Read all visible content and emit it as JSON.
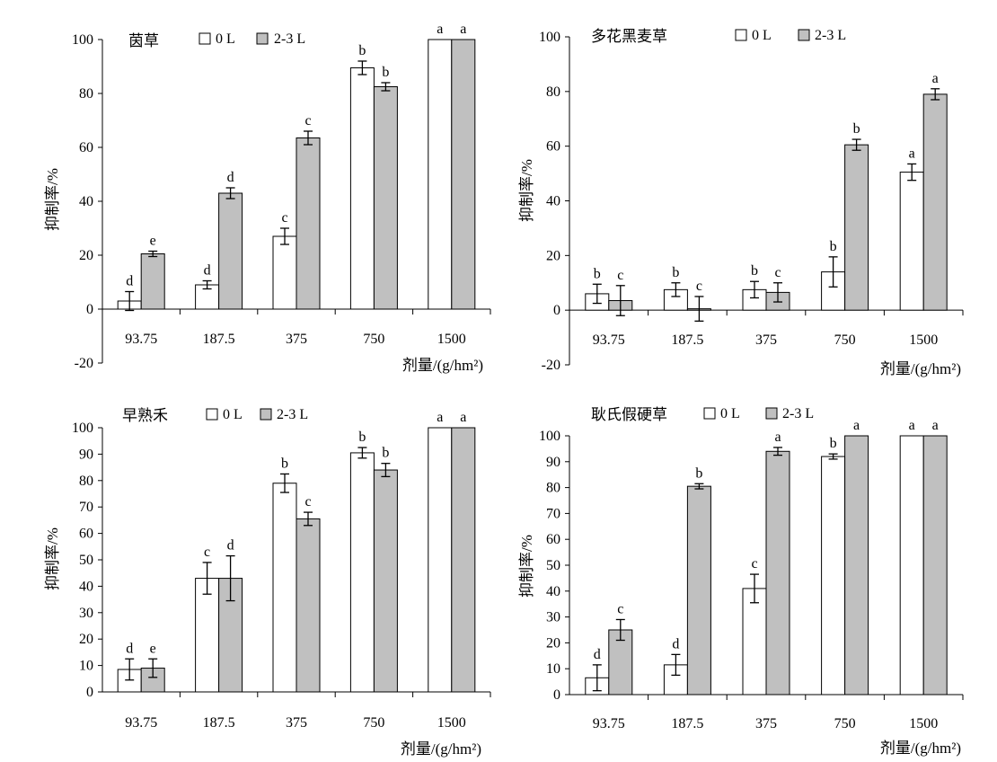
{
  "figure": {
    "colors": {
      "bar_0L": "#ffffff",
      "bar_23L": "#c0c0c0",
      "ink": "#000000"
    },
    "xlabel": "剂量/(g/hm²)",
    "ylabel": "抑制率/%",
    "legend": [
      "0 L",
      "2-3 L"
    ]
  },
  "chart_data": [
    {
      "type": "bar",
      "title": "茵草",
      "categories": [
        "93.75",
        "187.5",
        "375",
        "750",
        "1500"
      ],
      "ylim": [
        -20,
        100
      ],
      "yticks": [
        -20,
        0,
        20,
        40,
        60,
        80,
        100
      ],
      "series": [
        {
          "name": "0 L",
          "values": [
            3,
            9,
            27,
            89.5,
            100
          ],
          "errors": [
            3.5,
            1.5,
            3,
            2.5,
            0
          ],
          "letters": [
            "d",
            "d",
            "c",
            "b",
            "a"
          ]
        },
        {
          "name": "2-3 L",
          "values": [
            20.5,
            43,
            63.5,
            82.5,
            100
          ],
          "errors": [
            1,
            2,
            2.5,
            1.5,
            0
          ],
          "letters": [
            "e",
            "d",
            "c",
            "b",
            "a"
          ]
        }
      ],
      "xlabel": "剂量/(g/hm²)",
      "ylabel": "抑制率/%"
    },
    {
      "type": "bar",
      "title": "多花黑麦草",
      "categories": [
        "93.75",
        "187.5",
        "375",
        "750",
        "1500"
      ],
      "ylim": [
        -20,
        100
      ],
      "yticks": [
        -20,
        0,
        20,
        40,
        60,
        80,
        100
      ],
      "series": [
        {
          "name": "0 L",
          "values": [
            6,
            7.5,
            7.5,
            14,
            50.5
          ],
          "errors": [
            3.5,
            2.5,
            3,
            5.5,
            3
          ],
          "letters": [
            "b",
            "b",
            "b",
            "b",
            "a"
          ]
        },
        {
          "name": "2-3 L",
          "values": [
            3.5,
            0.5,
            6.5,
            60.5,
            79
          ],
          "errors": [
            5.5,
            4.5,
            3.5,
            2,
            2
          ],
          "letters": [
            "c",
            "c",
            "c",
            "b",
            "a"
          ]
        }
      ],
      "xlabel": "剂量/(g/hm²)",
      "ylabel": "抑制率/%"
    },
    {
      "type": "bar",
      "title": "早熟禾",
      "categories": [
        "93.75",
        "187.5",
        "375",
        "750",
        "1500"
      ],
      "ylim": [
        0,
        100
      ],
      "yticks": [
        0,
        10,
        20,
        30,
        40,
        50,
        60,
        70,
        80,
        90,
        100
      ],
      "series": [
        {
          "name": "0 L",
          "values": [
            8.5,
            43,
            79,
            90.5,
            100
          ],
          "errors": [
            4,
            6,
            3.5,
            2,
            0
          ],
          "letters": [
            "d",
            "c",
            "b",
            "b",
            "a"
          ]
        },
        {
          "name": "2-3 L",
          "values": [
            9,
            43,
            65.5,
            84,
            100
          ],
          "errors": [
            3.5,
            8.5,
            2.5,
            2.5,
            0
          ],
          "letters": [
            "e",
            "d",
            "c",
            "b",
            "a"
          ]
        }
      ],
      "xlabel": "剂量/(g/hm²)",
      "ylabel": "抑制率/%"
    },
    {
      "type": "bar",
      "title": "耿氏假硬草",
      "categories": [
        "93.75",
        "187.5",
        "375",
        "750",
        "1500"
      ],
      "ylim": [
        0,
        100
      ],
      "yticks": [
        0,
        10,
        20,
        30,
        40,
        50,
        60,
        70,
        80,
        90,
        100
      ],
      "series": [
        {
          "name": "0 L",
          "values": [
            6.5,
            11.5,
            41,
            92,
            100
          ],
          "errors": [
            5,
            4,
            5.5,
            1,
            0
          ],
          "letters": [
            "d",
            "d",
            "c",
            "b",
            "a"
          ]
        },
        {
          "name": "2-3 L",
          "values": [
            25,
            80.5,
            94,
            100,
            100
          ],
          "errors": [
            4,
            1,
            1.5,
            0,
            0
          ],
          "letters": [
            "c",
            "b",
            "a",
            "a",
            "a"
          ]
        }
      ],
      "xlabel": "剂量/(g/hm²)",
      "ylabel": "抑制率/%"
    }
  ]
}
